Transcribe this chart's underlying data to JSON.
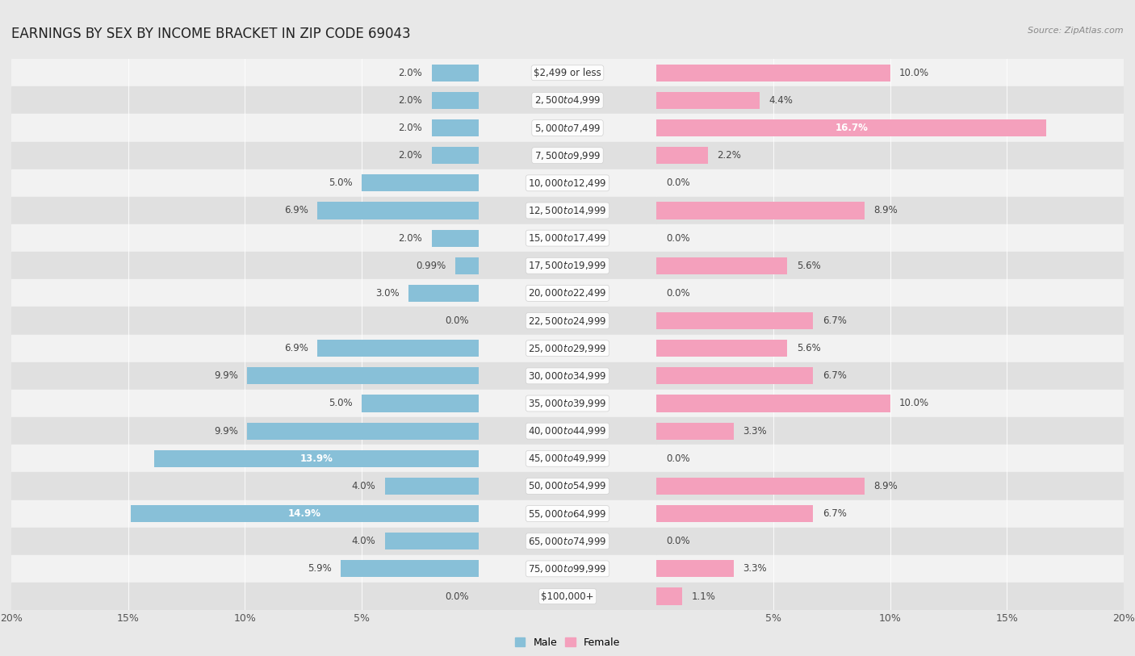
{
  "title": "EARNINGS BY SEX BY INCOME BRACKET IN ZIP CODE 69043",
  "source": "Source: ZipAtlas.com",
  "categories": [
    "$2,499 or less",
    "$2,500 to $4,999",
    "$5,000 to $7,499",
    "$7,500 to $9,999",
    "$10,000 to $12,499",
    "$12,500 to $14,999",
    "$15,000 to $17,499",
    "$17,500 to $19,999",
    "$20,000 to $22,499",
    "$22,500 to $24,999",
    "$25,000 to $29,999",
    "$30,000 to $34,999",
    "$35,000 to $39,999",
    "$40,000 to $44,999",
    "$45,000 to $49,999",
    "$50,000 to $54,999",
    "$55,000 to $64,999",
    "$65,000 to $74,999",
    "$75,000 to $99,999",
    "$100,000+"
  ],
  "male_values": [
    2.0,
    2.0,
    2.0,
    2.0,
    5.0,
    6.9,
    2.0,
    0.99,
    3.0,
    0.0,
    6.9,
    9.9,
    5.0,
    9.9,
    13.9,
    4.0,
    14.9,
    4.0,
    5.9,
    0.0
  ],
  "female_values": [
    10.0,
    4.4,
    16.7,
    2.2,
    0.0,
    8.9,
    0.0,
    5.6,
    0.0,
    6.7,
    5.6,
    6.7,
    10.0,
    3.3,
    0.0,
    8.9,
    6.7,
    0.0,
    3.3,
    1.1
  ],
  "male_color": "#88c0d8",
  "female_color": "#f4a0bc",
  "male_color_dark": "#5a9fc0",
  "female_color_dark": "#e8607a",
  "bg_color": "#e8e8e8",
  "row_odd_color": "#f2f2f2",
  "row_even_color": "#e0e0e0",
  "xlim": 20.0,
  "bar_height": 0.62,
  "title_fontsize": 12,
  "label_fontsize": 8.5,
  "tick_fontsize": 9,
  "value_fontsize": 8.5
}
